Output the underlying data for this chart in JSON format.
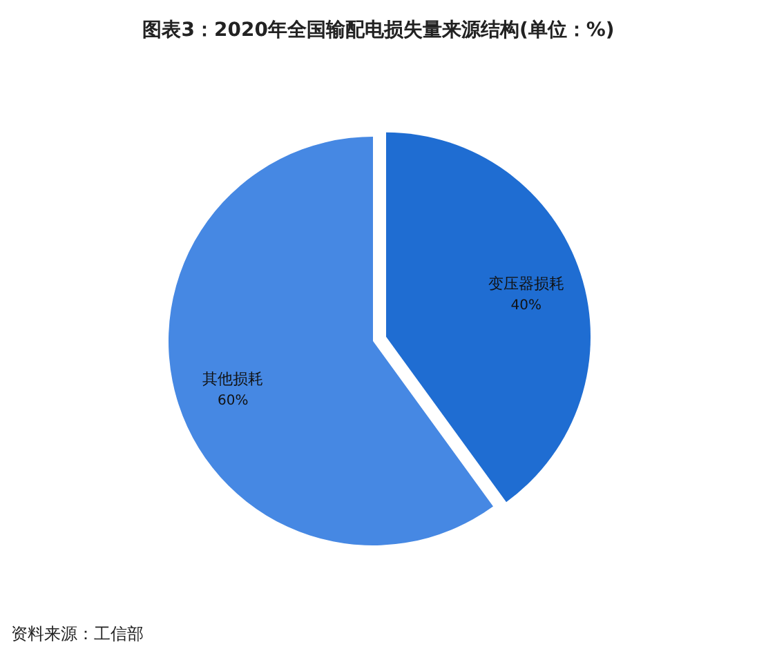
{
  "chart_data": {
    "type": "pie",
    "title": "图表3：2020年全国输配电损失量来源结构(单位：%)",
    "categories": [
      "变压器损耗",
      "其他损耗"
    ],
    "values": [
      40,
      60
    ],
    "colors": [
      "#1f6dd2",
      "#4688e3"
    ],
    "value_labels": [
      "40%",
      "60%"
    ],
    "annotations": [
      "资料来源：工信部"
    ]
  }
}
